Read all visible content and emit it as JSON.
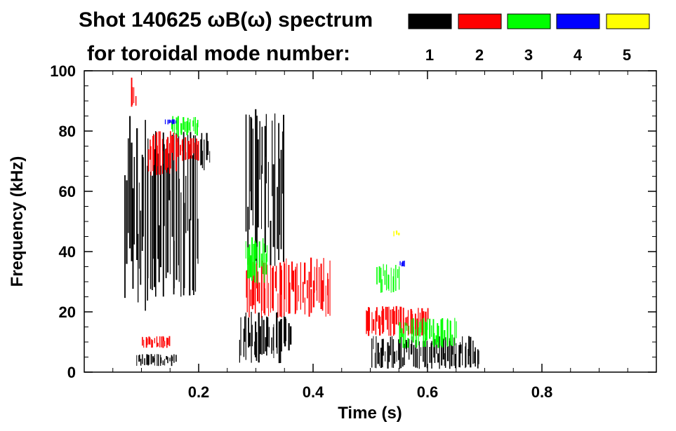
{
  "chart_data": {
    "type": "heatmap",
    "title_line1": "Shot 140625 ωB(ω) spectrum",
    "title_line2": "for toroidal mode number:",
    "xlabel": "Time (s)",
    "ylabel": "Frequency (kHz)",
    "xlim": [
      0.0,
      1.0
    ],
    "ylim": [
      0,
      100
    ],
    "x_ticks": [
      {
        "value": 0.2,
        "label": "0.2"
      },
      {
        "value": 0.4,
        "label": "0.4"
      },
      {
        "value": 0.6,
        "label": "0.6"
      },
      {
        "value": 0.8,
        "label": "0.8"
      }
    ],
    "y_ticks": [
      {
        "value": 0,
        "label": "0"
      },
      {
        "value": 20,
        "label": "20"
      },
      {
        "value": 40,
        "label": "40"
      },
      {
        "value": 60,
        "label": "60"
      },
      {
        "value": 80,
        "label": "80"
      },
      {
        "value": 100,
        "label": "100"
      }
    ],
    "legend": [
      {
        "mode": "1",
        "color": "#000000"
      },
      {
        "mode": "2",
        "color": "#ff0000"
      },
      {
        "mode": "3",
        "color": "#00ff00"
      },
      {
        "mode": "4",
        "color": "#0000ff"
      },
      {
        "mode": "5",
        "color": "#ffff00"
      }
    ],
    "regions": [
      {
        "mode": 1,
        "t": [
          0.07,
          0.11
        ],
        "f": [
          20,
          85
        ]
      },
      {
        "mode": 1,
        "t": [
          0.11,
          0.2
        ],
        "f": [
          25,
          80
        ]
      },
      {
        "mode": 1,
        "t": [
          0.2,
          0.22
        ],
        "f": [
          65,
          80
        ]
      },
      {
        "mode": 1,
        "t": [
          0.09,
          0.16
        ],
        "f": [
          2,
          6
        ]
      },
      {
        "mode": 1,
        "t": [
          0.27,
          0.36
        ],
        "f": [
          3,
          20
        ]
      },
      {
        "mode": 1,
        "t": [
          0.28,
          0.35
        ],
        "f": [
          35,
          90
        ]
      },
      {
        "mode": 1,
        "t": [
          0.5,
          0.69
        ],
        "f": [
          1,
          12
        ]
      },
      {
        "mode": 2,
        "t": [
          0.08,
          0.09
        ],
        "f": [
          88,
          98
        ]
      },
      {
        "mode": 2,
        "t": [
          0.11,
          0.16
        ],
        "f": [
          65,
          80
        ]
      },
      {
        "mode": 2,
        "t": [
          0.16,
          0.2
        ],
        "f": [
          70,
          78
        ]
      },
      {
        "mode": 2,
        "t": [
          0.1,
          0.15
        ],
        "f": [
          8,
          12
        ]
      },
      {
        "mode": 2,
        "t": [
          0.28,
          0.43
        ],
        "f": [
          18,
          38
        ]
      },
      {
        "mode": 2,
        "t": [
          0.49,
          0.6
        ],
        "f": [
          12,
          22
        ]
      },
      {
        "mode": 3,
        "t": [
          0.15,
          0.2
        ],
        "f": [
          78,
          85
        ]
      },
      {
        "mode": 3,
        "t": [
          0.28,
          0.32
        ],
        "f": [
          28,
          45
        ]
      },
      {
        "mode": 3,
        "t": [
          0.51,
          0.55
        ],
        "f": [
          26,
          36
        ]
      },
      {
        "mode": 3,
        "t": [
          0.55,
          0.65
        ],
        "f": [
          8,
          18
        ]
      },
      {
        "mode": 4,
        "t": [
          0.14,
          0.16
        ],
        "f": [
          82,
          84
        ]
      },
      {
        "mode": 4,
        "t": [
          0.55,
          0.56
        ],
        "f": [
          35,
          37
        ]
      },
      {
        "mode": 5,
        "t": [
          0.54,
          0.55
        ],
        "f": [
          45,
          47
        ]
      }
    ]
  }
}
